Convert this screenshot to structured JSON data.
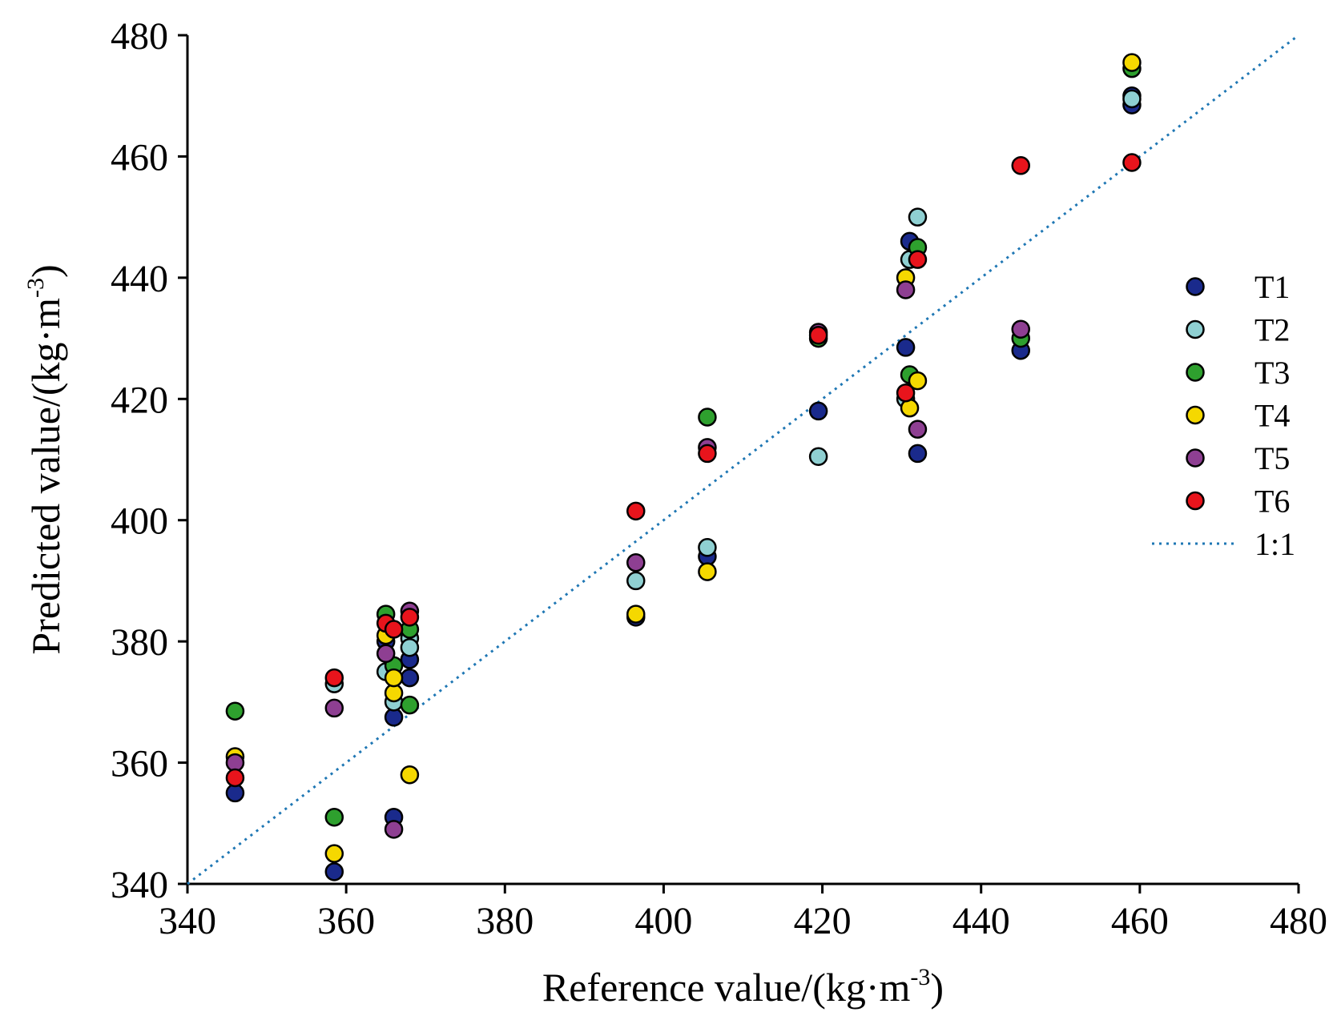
{
  "chart_data": {
    "type": "scatter",
    "xlabel": {
      "main": "Reference value/(kg·m",
      "sup": "-3",
      "close": ")"
    },
    "ylabel": {
      "main": "Predicted value/(kg·m",
      "sup": "-3",
      "close": ")"
    },
    "xlim": [
      340,
      480
    ],
    "ylim": [
      340,
      480
    ],
    "xticks": [
      340,
      360,
      380,
      400,
      420,
      440,
      460,
      480
    ],
    "yticks": [
      340,
      360,
      380,
      400,
      420,
      440,
      460,
      480
    ],
    "grid": false,
    "legend_position": "right",
    "reference_line": {
      "name": "1:1",
      "color": "#1f77b4",
      "style": "dotted",
      "from": [
        340,
        340
      ],
      "to": [
        480,
        480
      ]
    },
    "series": [
      {
        "name": "T1",
        "color": "#1a2a8c",
        "points": [
          [
            346,
            355
          ],
          [
            358.5,
            342
          ],
          [
            365,
            380
          ],
          [
            366,
            351
          ],
          [
            366,
            367.5
          ],
          [
            368,
            377
          ],
          [
            368,
            374
          ],
          [
            396.5,
            384
          ],
          [
            405.5,
            394
          ],
          [
            419.5,
            418
          ],
          [
            430.5,
            428.5
          ],
          [
            431,
            446
          ],
          [
            432,
            411
          ],
          [
            445,
            428
          ],
          [
            459,
            468.5
          ],
          [
            459,
            470
          ]
        ]
      },
      {
        "name": "T2",
        "color": "#8fd0d2",
        "points": [
          [
            358.5,
            373
          ],
          [
            365,
            375
          ],
          [
            366,
            370
          ],
          [
            368,
            380.5
          ],
          [
            368,
            379
          ],
          [
            396.5,
            390
          ],
          [
            405.5,
            395.5
          ],
          [
            419.5,
            410.5
          ],
          [
            430.5,
            420
          ],
          [
            431,
            443
          ],
          [
            432,
            450
          ],
          [
            459,
            469.5
          ]
        ]
      },
      {
        "name": "T3",
        "color": "#2ea02e",
        "points": [
          [
            346,
            368.5
          ],
          [
            358.5,
            351
          ],
          [
            365,
            384.5
          ],
          [
            366,
            376
          ],
          [
            368,
            382
          ],
          [
            368,
            369.5
          ],
          [
            405.5,
            417
          ],
          [
            419.5,
            430
          ],
          [
            431,
            424
          ],
          [
            432,
            445
          ],
          [
            445,
            430
          ],
          [
            459,
            474.5
          ]
        ]
      },
      {
        "name": "T4",
        "color": "#f5d800",
        "points": [
          [
            346,
            361
          ],
          [
            358.5,
            345
          ],
          [
            365,
            381
          ],
          [
            366,
            371.5
          ],
          [
            366,
            374
          ],
          [
            368,
            358
          ],
          [
            396.5,
            384.5
          ],
          [
            405.5,
            391.5
          ],
          [
            430.5,
            440
          ],
          [
            431,
            418.5
          ],
          [
            432,
            423
          ],
          [
            459,
            475.5
          ]
        ]
      },
      {
        "name": "T5",
        "color": "#8e3f92",
        "points": [
          [
            346,
            360
          ],
          [
            358.5,
            369
          ],
          [
            365,
            378
          ],
          [
            366,
            349
          ],
          [
            368,
            385
          ],
          [
            396.5,
            393
          ],
          [
            405.5,
            412
          ],
          [
            419.5,
            431
          ],
          [
            430.5,
            438
          ],
          [
            432,
            415
          ],
          [
            445,
            431.5
          ]
        ]
      },
      {
        "name": "T6",
        "color": "#e8141c",
        "points": [
          [
            346,
            357.5
          ],
          [
            358.5,
            374
          ],
          [
            365,
            383
          ],
          [
            366,
            382
          ],
          [
            368,
            384
          ],
          [
            396.5,
            401.5
          ],
          [
            405.5,
            411
          ],
          [
            419.5,
            430.5
          ],
          [
            430.5,
            421
          ],
          [
            432,
            443
          ],
          [
            445,
            458.5
          ],
          [
            459,
            459
          ]
        ]
      }
    ]
  }
}
